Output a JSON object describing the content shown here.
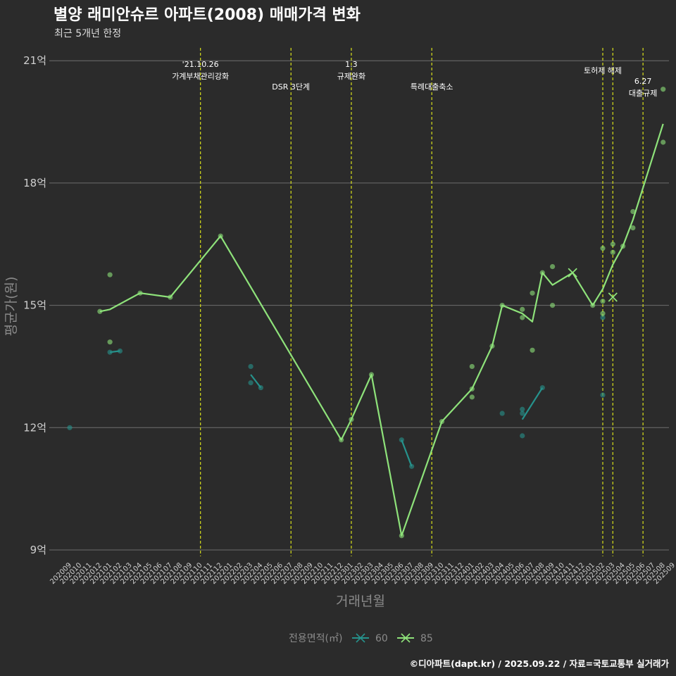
{
  "title": "별양 래미안슈르 아파트(2008) 매매가격 변화",
  "subtitle": "최근 5개년 한정",
  "caption": "©디아파트(dapt.kr) / 2025.09.22 / 자료=국토교통부 실거래가",
  "colors": {
    "background": "#2b2b2b",
    "grid": "#6e6e6e",
    "event_line": "#d8e01a",
    "series_60": "#26928c",
    "series_85": "#8ee27a",
    "text": "#cfcfcf"
  },
  "chart_data": {
    "type": "line",
    "xlabel": "거래년월",
    "ylabel": "평균가(원)",
    "ylim": [
      9,
      21
    ],
    "y_ticks": [
      {
        "value": 9,
        "label": "9억"
      },
      {
        "value": 12,
        "label": "12억"
      },
      {
        "value": 15,
        "label": "15억"
      },
      {
        "value": 18,
        "label": "18억"
      },
      {
        "value": 21,
        "label": "21억"
      }
    ],
    "x_categories": [
      "202009",
      "202010",
      "202011",
      "202012",
      "202101",
      "202102",
      "202103",
      "202104",
      "202105",
      "202106",
      "202107",
      "202108",
      "202109",
      "202110",
      "202111",
      "202112",
      "202201",
      "202202",
      "202203",
      "202204",
      "202205",
      "202206",
      "202207",
      "202208",
      "202209",
      "202210",
      "202211",
      "202212",
      "202301",
      "202302",
      "202303",
      "202304",
      "202305",
      "202306",
      "202307",
      "202308",
      "202309",
      "202310",
      "202311",
      "202312",
      "202401",
      "202402",
      "202403",
      "202404",
      "202405",
      "202406",
      "202407",
      "202408",
      "202409",
      "202410",
      "202411",
      "202412",
      "202501",
      "202502",
      "202503",
      "202504",
      "202505",
      "202506",
      "202507",
      "202508",
      "202509"
    ],
    "events": [
      {
        "x": "202110",
        "lines": [
          "'21.10.26",
          "가계부채관리강화"
        ],
        "level": 0
      },
      {
        "x": "202207",
        "lines": [
          "DSR 3단계"
        ],
        "level": 2
      },
      {
        "x": "202301",
        "lines": [
          "1.3",
          "규제완화"
        ],
        "level": 0
      },
      {
        "x": "202309",
        "lines": [
          "특례대출축소"
        ],
        "level": 2
      },
      {
        "x": "202502",
        "lines": [
          "토허제 해제"
        ],
        "level": 1
      },
      {
        "x": "202503",
        "lines": [],
        "level": 1
      },
      {
        "x": "202506",
        "lines": [
          "6.27",
          "대출규제"
        ],
        "level": 3
      }
    ],
    "legend": {
      "title": "전용면적(㎡)",
      "position": "bottom"
    },
    "series": [
      {
        "name": "60",
        "color": "#26928c",
        "points": [
          {
            "x": "202009",
            "y": 12.0
          },
          {
            "x": "202101",
            "y": 13.85
          },
          {
            "x": "202102",
            "y": 13.88
          },
          {
            "x": "202203",
            "y": 13.5
          },
          {
            "x": "202203",
            "y": 13.1
          },
          {
            "x": "202204",
            "y": 12.98
          },
          {
            "x": "202306",
            "y": 11.7
          },
          {
            "x": "202307",
            "y": 11.05
          },
          {
            "x": "202404",
            "y": 12.35
          },
          {
            "x": "202406",
            "y": 12.45
          },
          {
            "x": "202406",
            "y": 12.35
          },
          {
            "x": "202406",
            "y": 11.8
          },
          {
            "x": "202408",
            "y": 12.98
          },
          {
            "x": "202502",
            "y": 12.8
          },
          {
            "x": "202502",
            "y": 14.7
          }
        ],
        "lines": [
          [
            {
              "x": "202101",
              "y": 13.85
            },
            {
              "x": "202102",
              "y": 13.88
            }
          ],
          [
            {
              "x": "202203",
              "y": 13.3
            },
            {
              "x": "202204",
              "y": 12.98
            }
          ],
          [
            {
              "x": "202306",
              "y": 11.7
            },
            {
              "x": "202307",
              "y": 11.05
            }
          ],
          [
            {
              "x": "202406",
              "y": 12.2
            },
            {
              "x": "202408",
              "y": 12.98
            }
          ]
        ],
        "crosses": []
      },
      {
        "name": "85",
        "color": "#8ee27a",
        "points": [
          {
            "x": "202012",
            "y": 14.85
          },
          {
            "x": "202101",
            "y": 15.75
          },
          {
            "x": "202101",
            "y": 14.1
          },
          {
            "x": "202104",
            "y": 15.3
          },
          {
            "x": "202107",
            "y": 15.2
          },
          {
            "x": "202112",
            "y": 16.7
          },
          {
            "x": "202212",
            "y": 11.7
          },
          {
            "x": "202301",
            "y": 12.2
          },
          {
            "x": "202303",
            "y": 13.3
          },
          {
            "x": "202306",
            "y": 9.35
          },
          {
            "x": "202310",
            "y": 12.15
          },
          {
            "x": "202401",
            "y": 13.5
          },
          {
            "x": "202401",
            "y": 12.95
          },
          {
            "x": "202401",
            "y": 12.75
          },
          {
            "x": "202403",
            "y": 14.0
          },
          {
            "x": "202404",
            "y": 15.0
          },
          {
            "x": "202406",
            "y": 14.9
          },
          {
            "x": "202406",
            "y": 14.7
          },
          {
            "x": "202407",
            "y": 15.3
          },
          {
            "x": "202407",
            "y": 13.9
          },
          {
            "x": "202408",
            "y": 15.8
          },
          {
            "x": "202409",
            "y": 15.95
          },
          {
            "x": "202409",
            "y": 15.0
          },
          {
            "x": "202501",
            "y": 15.0
          },
          {
            "x": "202502",
            "y": 16.4
          },
          {
            "x": "202502",
            "y": 15.1
          },
          {
            "x": "202502",
            "y": 14.8
          },
          {
            "x": "202503",
            "y": 16.5
          },
          {
            "x": "202503",
            "y": 16.3
          },
          {
            "x": "202504",
            "y": 16.45
          },
          {
            "x": "202505",
            "y": 17.3
          },
          {
            "x": "202505",
            "y": 16.9
          },
          {
            "x": "202508",
            "y": 20.3
          },
          {
            "x": "202508",
            "y": 19.0
          }
        ],
        "lines": [
          [
            {
              "x": "202012",
              "y": 14.85
            },
            {
              "x": "202101",
              "y": 14.9
            },
            {
              "x": "202104",
              "y": 15.3
            },
            {
              "x": "202107",
              "y": 15.2
            },
            {
              "x": "202112",
              "y": 16.7
            },
            {
              "x": "202212",
              "y": 11.7
            },
            {
              "x": "202301",
              "y": 12.2
            },
            {
              "x": "202303",
              "y": 13.3
            },
            {
              "x": "202306",
              "y": 9.35
            },
            {
              "x": "202310",
              "y": 12.15
            },
            {
              "x": "202401",
              "y": 12.95
            },
            {
              "x": "202403",
              "y": 14.0
            },
            {
              "x": "202404",
              "y": 15.0
            },
            {
              "x": "202406",
              "y": 14.8
            },
            {
              "x": "202407",
              "y": 14.6
            },
            {
              "x": "202408",
              "y": 15.8
            },
            {
              "x": "202409",
              "y": 15.5
            },
            {
              "x": "202411",
              "y": 15.8
            },
            {
              "x": "202501",
              "y": 15.0
            },
            {
              "x": "202502",
              "y": 15.4
            },
            {
              "x": "202503",
              "y": 16.0
            },
            {
              "x": "202504",
              "y": 16.45
            },
            {
              "x": "202505",
              "y": 17.1
            },
            {
              "x": "202508",
              "y": 19.45
            }
          ]
        ],
        "crosses": [
          {
            "x": "202411",
            "y": 15.8
          },
          {
            "x": "202503",
            "y": 15.2
          }
        ]
      }
    ]
  }
}
